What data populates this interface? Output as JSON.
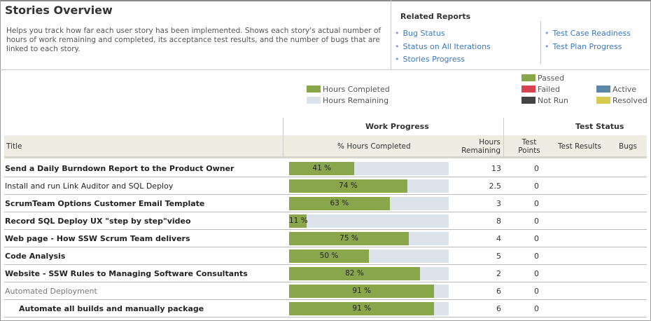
{
  "title": "Stories Overview",
  "description": "Helps you track how far each user story has been implemented. Shows each story's actual number of hours of work remaining and completed, its acceptance test results, and the number of bugs that are linked to each story.",
  "related": {
    "title": "Related Reports",
    "left": [
      "Bug Status",
      "Status on All Iterations",
      "Stories Progress"
    ],
    "right": [
      "Test Case Readiness",
      "Test Plan Progress"
    ]
  },
  "legend": {
    "work": [
      {
        "label": "Hours Completed",
        "color": "#8aa64b"
      },
      {
        "label": "Hours Remaining",
        "color": "#dce3ea"
      }
    ],
    "test": [
      {
        "label": "Passed",
        "color": "#8aa64b"
      },
      {
        "label": "Failed",
        "color": "#d9434f"
      },
      {
        "label": "Not Run",
        "color": "#444444"
      },
      {
        "label": "Active",
        "color": "#5b87a8"
      },
      {
        "label": "Resolved",
        "color": "#d8c94f"
      }
    ]
  },
  "groups": {
    "work": "Work Progress",
    "test": "Test Status"
  },
  "columns": {
    "title": "Title",
    "pct": "% Hours Completed",
    "hours": "Hours Remaining",
    "points": "Test Points",
    "results": "Test Results",
    "bugs": "Bugs"
  },
  "rows": [
    {
      "title": "Send a Daily Burndown Report to the Product Owner",
      "pct": 41,
      "pct_label": "41 %",
      "hours": "13",
      "points": "0",
      "style": "b"
    },
    {
      "title": "Install and run Link Auditor and SQL Deploy",
      "pct": 74,
      "pct_label": "74 %",
      "hours": "2.5",
      "points": "0",
      "style": ""
    },
    {
      "title": "ScrumTeam Options Customer Email Template",
      "pct": 63,
      "pct_label": "63 %",
      "hours": "3",
      "points": "0",
      "style": "b"
    },
    {
      "title": "Record SQL Deploy UX \"step by step\"video",
      "pct": 11,
      "pct_label": "11 %",
      "hours": "8",
      "points": "0",
      "style": "b"
    },
    {
      "title": "Web page - How SSW Scrum Team delivers",
      "pct": 75,
      "pct_label": "75 %",
      "hours": "4",
      "points": "0",
      "style": "b"
    },
    {
      "title": "Code Analysis",
      "pct": 50,
      "pct_label": "50 %",
      "hours": "5",
      "points": "0",
      "style": "b"
    },
    {
      "title": "Website - SSW Rules to Managing Software Consultants",
      "pct": 82,
      "pct_label": "82 %",
      "hours": "2",
      "points": "0",
      "style": "b"
    },
    {
      "title": "Automated Deployment",
      "pct": 91,
      "pct_label": "91 %",
      "hours": "6",
      "points": "0",
      "style": "g"
    },
    {
      "title": "Automate all builds and manually package",
      "pct": 91,
      "pct_label": "91 %",
      "hours": "6",
      "points": "0",
      "style": "b ind"
    }
  ]
}
